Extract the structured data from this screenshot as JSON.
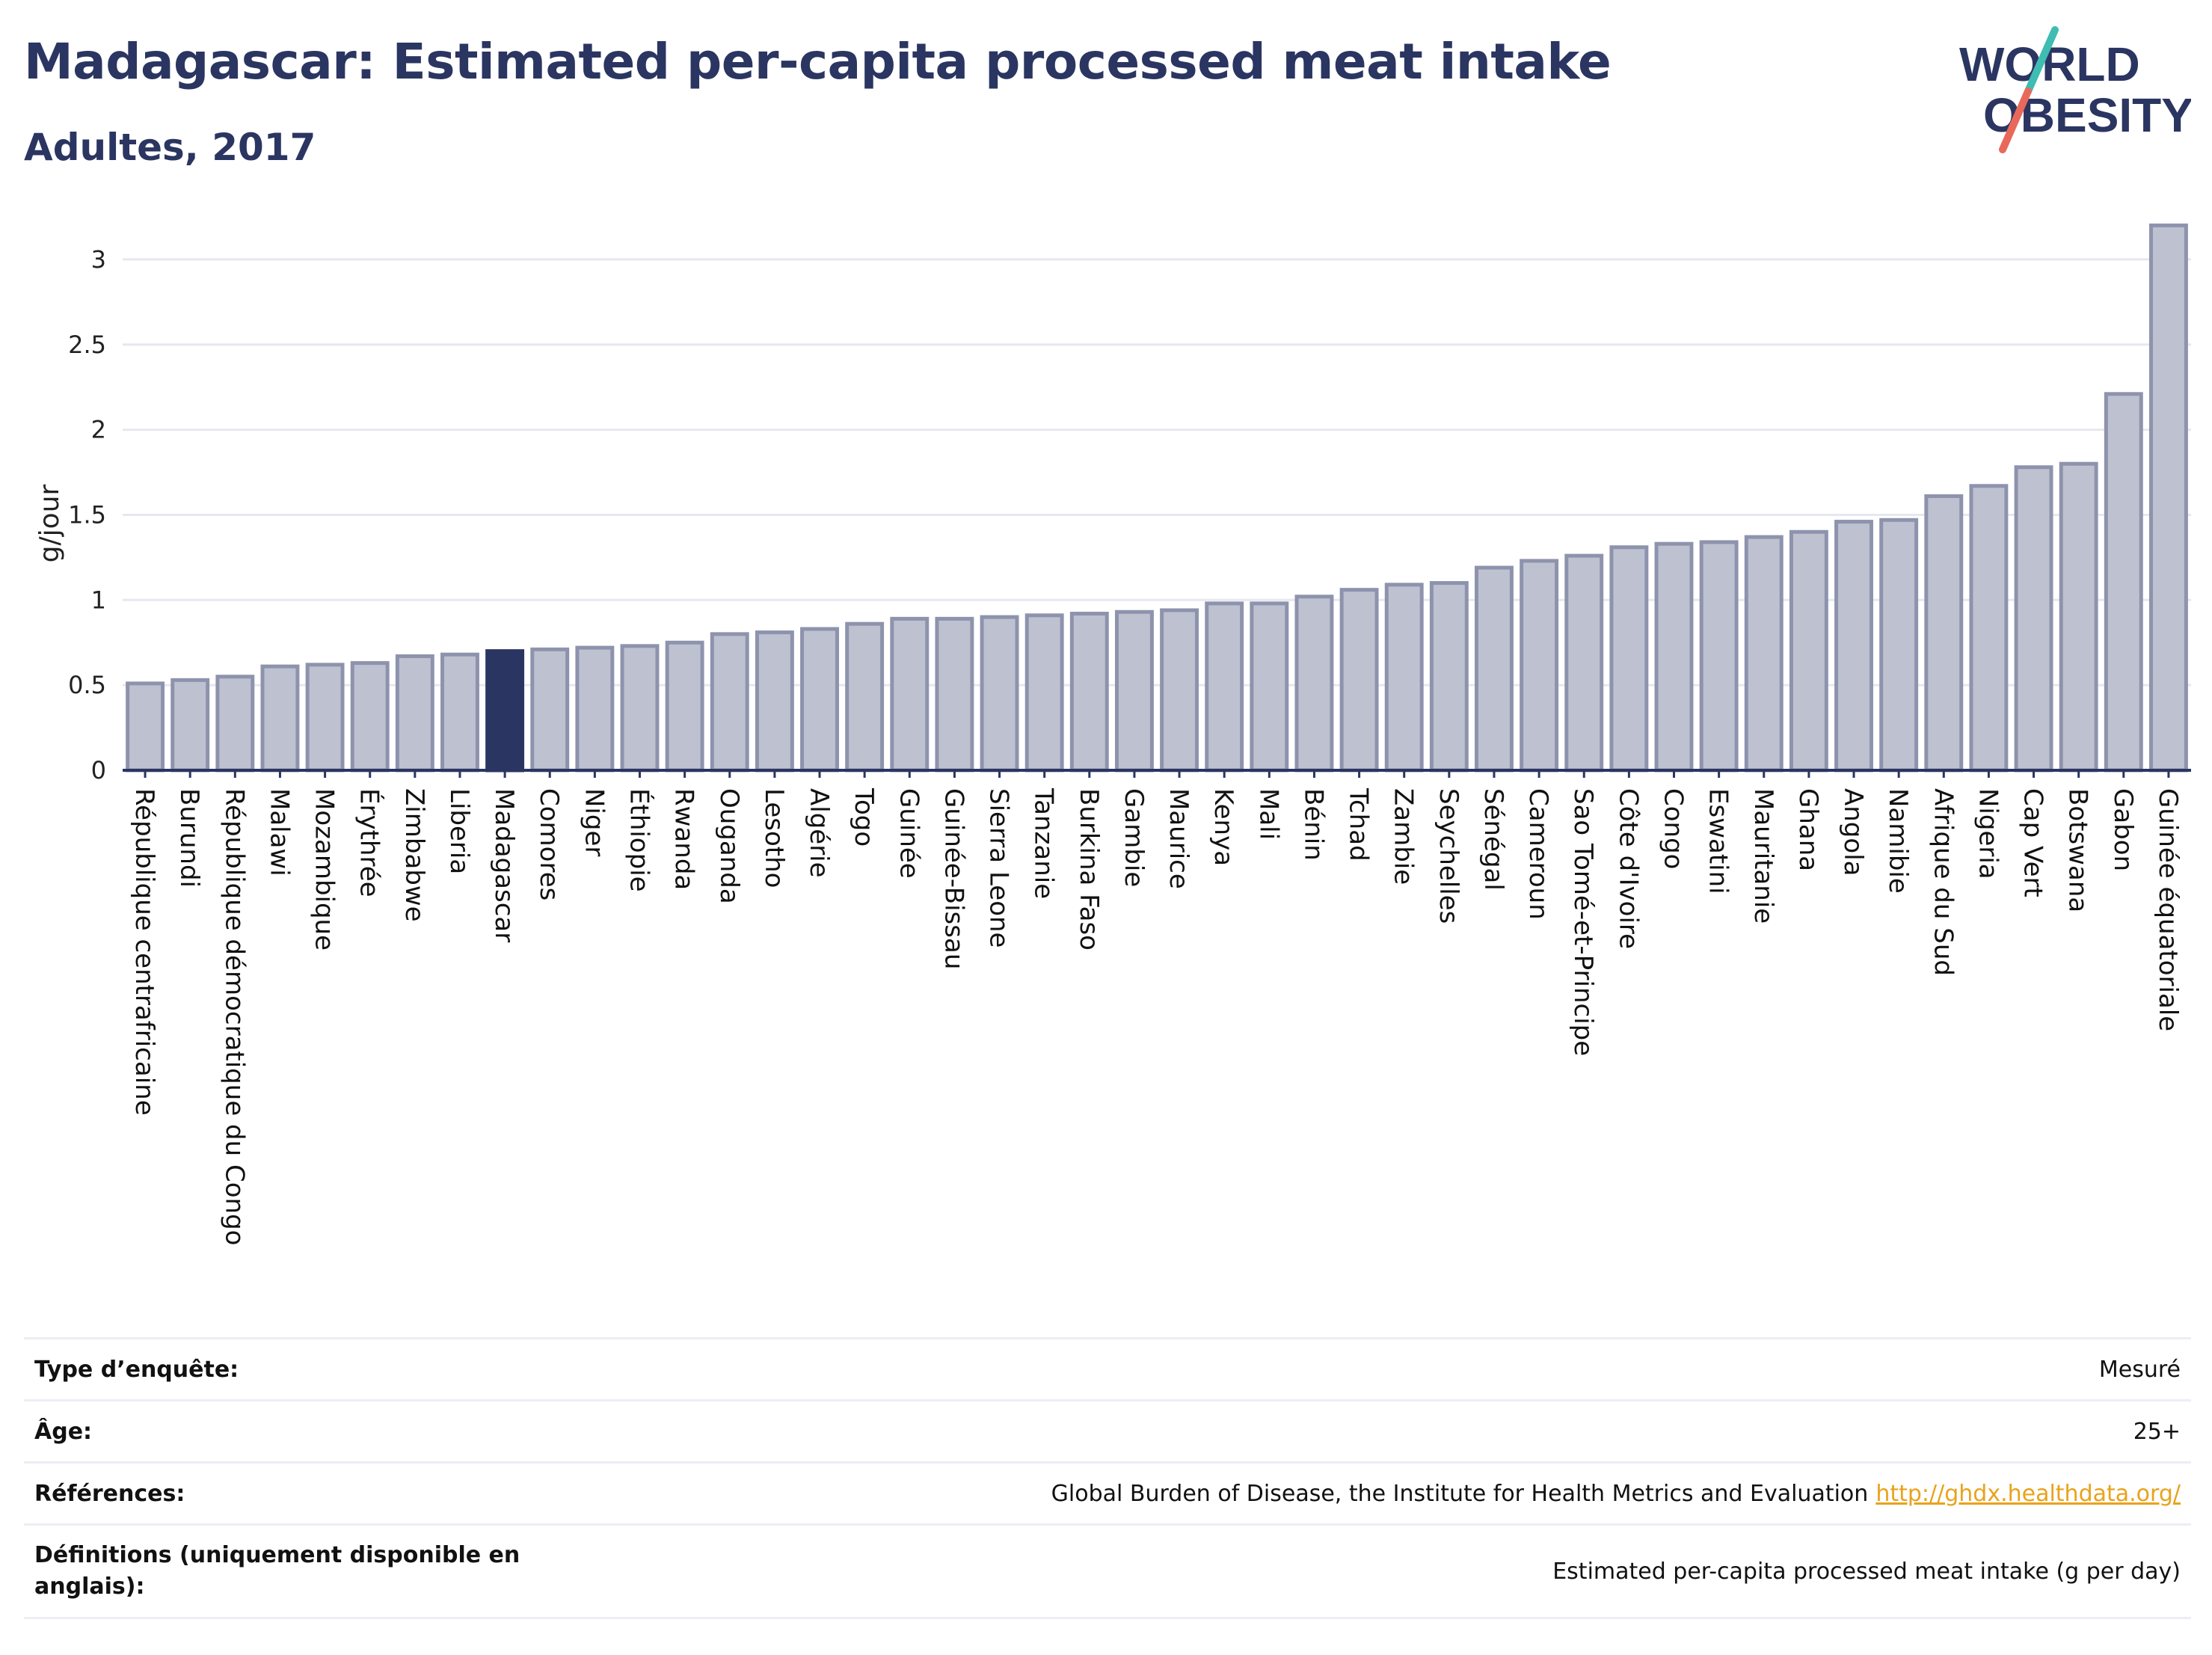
{
  "header": {
    "title": "Madagascar: Estimated per-capita processed meat intake",
    "subtitle": "Adultes, 2017"
  },
  "logo": {
    "line1": "WORLD",
    "line2": "OBESITY",
    "text_color": "#2b3561",
    "slash_top_color": "#3fbdb2",
    "slash_bottom_color": "#e8695a"
  },
  "chart_data": {
    "type": "bar",
    "ylabel": "g/jour",
    "ylim": [
      0,
      3.25
    ],
    "yticks": [
      0,
      0.5,
      1,
      1.5,
      2,
      2.5,
      3
    ],
    "ytick_labels": [
      "0",
      "0.5",
      "1",
      "1.5",
      "2",
      "2.5",
      "3"
    ],
    "grid": true,
    "highlight_category": "Madagascar",
    "bar_color": "#bec1d0",
    "bar_edge_color": "#8e93ad",
    "highlight_color": "#2b3561",
    "categories": [
      "République centrafricaine",
      "Burundi",
      "République démocratique du Congo",
      "Malawi",
      "Mozambique",
      "Érythrée",
      "Zimbabwe",
      "Liberia",
      "Madagascar",
      "Comores",
      "Niger",
      "Éthiopie",
      "Rwanda",
      "Ouganda",
      "Lesotho",
      "Algérie",
      "Togo",
      "Guinée",
      "Guinée-Bissau",
      "Sierra Leone",
      "Tanzanie",
      "Burkina Faso",
      "Gambie",
      "Maurice",
      "Kenya",
      "Mali",
      "Bénin",
      "Tchad",
      "Zambie",
      "Seychelles",
      "Sénégal",
      "Cameroun",
      "Sao Tomé-et-Principe",
      "Côte d'Ivoire",
      "Congo",
      "Eswatini",
      "Mauritanie",
      "Ghana",
      "Angola",
      "Namibie",
      "Afrique du Sud",
      "Nigeria",
      "Cap Vert",
      "Botswana",
      "Gabon",
      "Guinée équatoriale"
    ],
    "values": [
      0.51,
      0.53,
      0.55,
      0.61,
      0.62,
      0.63,
      0.67,
      0.68,
      0.7,
      0.71,
      0.72,
      0.73,
      0.75,
      0.8,
      0.81,
      0.83,
      0.86,
      0.89,
      0.89,
      0.9,
      0.91,
      0.92,
      0.93,
      0.94,
      0.98,
      0.98,
      1.02,
      1.06,
      1.09,
      1.1,
      1.19,
      1.23,
      1.26,
      1.31,
      1.33,
      1.34,
      1.37,
      1.4,
      1.46,
      1.47,
      1.61,
      1.67,
      1.78,
      1.8,
      2.21,
      3.2
    ]
  },
  "info": {
    "rows": [
      {
        "label": "Type d’enquête:",
        "value": "Mesuré"
      },
      {
        "label": "Âge:",
        "value": "25+"
      },
      {
        "label": "Références:",
        "value": "Global Burden of Disease, the Institute for Health Metrics and Evaluation",
        "link": "http://ghdx.healthdata.org/"
      },
      {
        "label": "Définitions (uniquement disponible en anglais):",
        "value": "Estimated per-capita processed meat intake (g per day)"
      }
    ]
  }
}
